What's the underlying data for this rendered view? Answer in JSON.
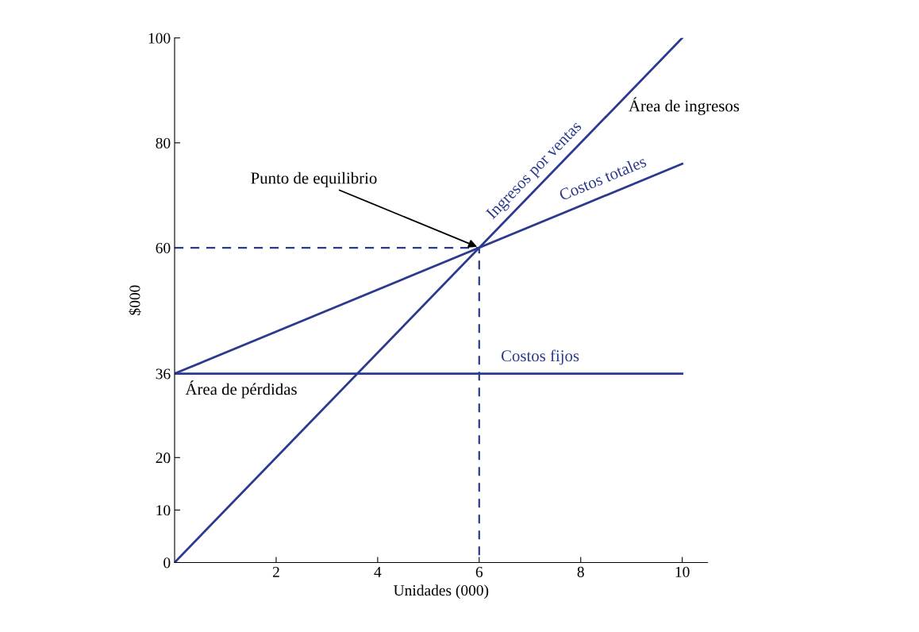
{
  "chart_data": {
    "type": "line",
    "xlabel": "Unidades (000)",
    "ylabel": "$000",
    "xlim": [
      0,
      10.5
    ],
    "ylim": [
      0,
      100
    ],
    "xticks": [
      2,
      4,
      6,
      8,
      10
    ],
    "yticks": [
      0,
      10,
      20,
      36,
      60,
      80,
      100
    ],
    "grid": false,
    "legend": false,
    "marker": "none",
    "series": [
      {
        "name": "Ingresos por ventas",
        "color": "#2b3a8f",
        "x": [
          0,
          10
        ],
        "values": [
          0,
          100
        ]
      },
      {
        "name": "Costos totales",
        "color": "#2b3a8f",
        "x": [
          0,
          10
        ],
        "values": [
          36,
          76
        ]
      },
      {
        "name": "Costos fijos",
        "color": "#2b3a8f",
        "x": [
          0,
          10
        ],
        "values": [
          36,
          36
        ]
      },
      {
        "color": "#2b3a8f",
        "x": [
          0,
          6,
          6
        ],
        "values": [
          60,
          60,
          0
        ],
        "line_style": "dashed"
      }
    ],
    "annotations": [
      {
        "text": "Punto de equilibrio",
        "x": 6,
        "y": 60
      },
      "Área de ingresos",
      "Área de pérdidas"
    ]
  }
}
